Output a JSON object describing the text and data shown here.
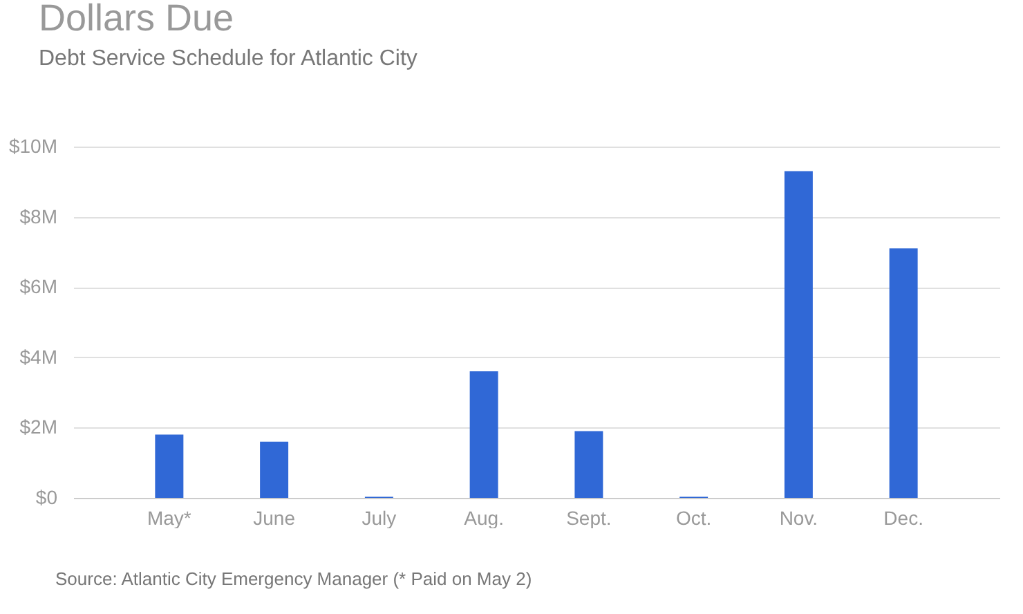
{
  "chart_data": {
    "type": "bar",
    "title": "Dollars Due",
    "subtitle": "Debt Service Schedule for Atlantic City",
    "categories": [
      "May*",
      "June",
      "July",
      "Aug.",
      "Sept.",
      "Oct.",
      "Nov.",
      "Dec."
    ],
    "values": [
      1.8,
      1.6,
      0.03,
      3.6,
      1.9,
      0.03,
      9.3,
      7.1
    ],
    "color": "#3068d6",
    "ylim": [
      0,
      10
    ],
    "yticks": [
      {
        "value": 0,
        "label": "$0"
      },
      {
        "value": 2,
        "label": "$2M"
      },
      {
        "value": 4,
        "label": "$4M"
      },
      {
        "value": 6,
        "label": "$6M"
      },
      {
        "value": 8,
        "label": "$8M"
      },
      {
        "value": 10,
        "label": "$10M"
      }
    ],
    "grid": "y",
    "annotations": [
      "Source: Atlantic City Emergency Manager (* Paid on May 2)"
    ]
  }
}
